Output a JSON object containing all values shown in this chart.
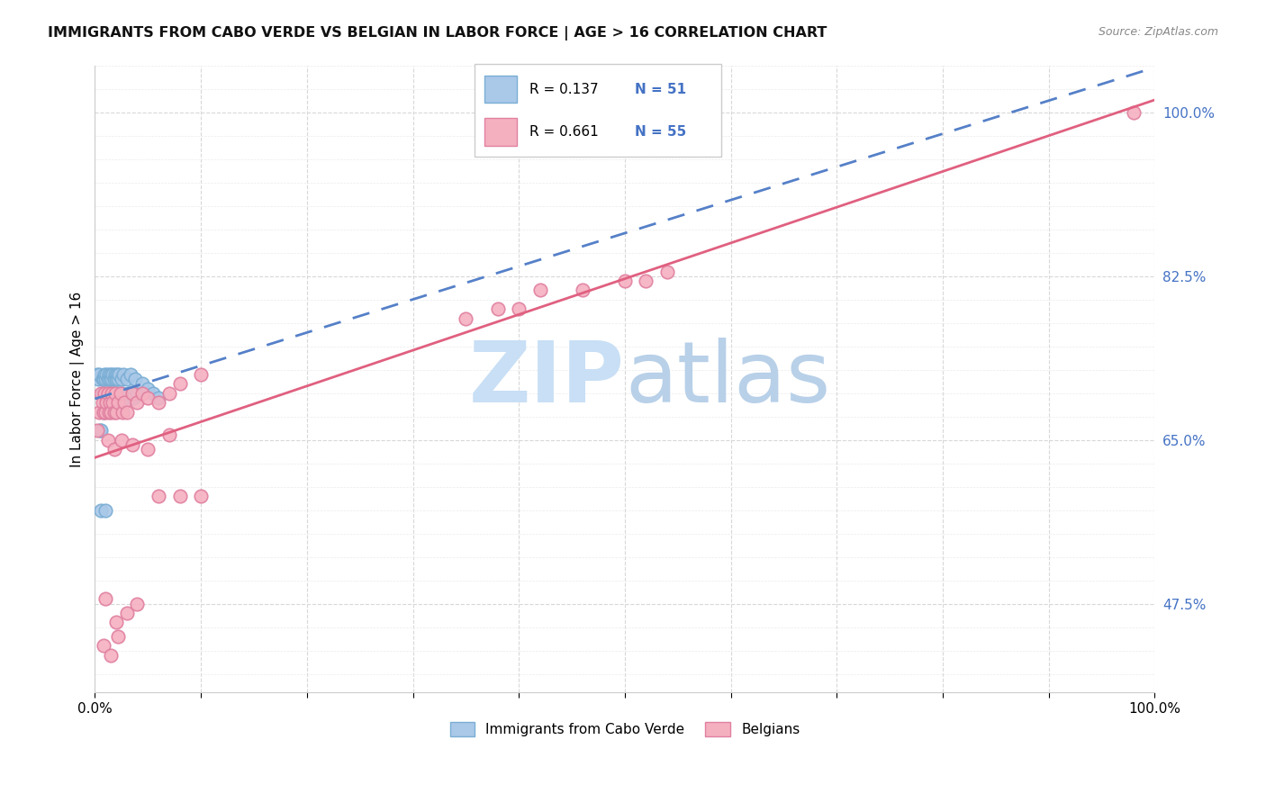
{
  "title": "IMMIGRANTS FROM CABO VERDE VS BELGIAN IN LABOR FORCE | AGE > 16 CORRELATION CHART",
  "source": "Source: ZipAtlas.com",
  "ylabel": "In Labor Force | Age > 16",
  "cabo_verde_color": "#aac8e8",
  "cabo_verde_edge": "#7aaed4",
  "belgians_color": "#f5b0c0",
  "belgians_edge": "#e080a0",
  "line_cv_color": "#5580c8",
  "line_bel_color": "#e06080",
  "watermark_zip_color": "#cce0f5",
  "watermark_atlas_color": "#c0d8f0",
  "R1": "0.137",
  "N1": "51",
  "R2": "0.661",
  "N2": "55",
  "ytick_color": "#4472c4",
  "cabo_verde_x": [
    0.002,
    0.003,
    0.004,
    0.005,
    0.006,
    0.007,
    0.007,
    0.008,
    0.008,
    0.009,
    0.01,
    0.01,
    0.011,
    0.012,
    0.012,
    0.013,
    0.013,
    0.014,
    0.014,
    0.015,
    0.015,
    0.016,
    0.016,
    0.017,
    0.017,
    0.018,
    0.018,
    0.019,
    0.02,
    0.02,
    0.021,
    0.022,
    0.022,
    0.023,
    0.024,
    0.025,
    0.026,
    0.027,
    0.028,
    0.03,
    0.032,
    0.034,
    0.036,
    0.038,
    0.04,
    0.045,
    0.05,
    0.055,
    0.06,
    0.006,
    0.01
  ],
  "cabo_verde_y": [
    0.72,
    0.715,
    0.72,
    0.66,
    0.66,
    0.715,
    0.7,
    0.715,
    0.68,
    0.72,
    0.715,
    0.69,
    0.72,
    0.715,
    0.7,
    0.72,
    0.695,
    0.715,
    0.7,
    0.72,
    0.695,
    0.715,
    0.7,
    0.72,
    0.695,
    0.715,
    0.7,
    0.72,
    0.715,
    0.695,
    0.72,
    0.715,
    0.7,
    0.72,
    0.695,
    0.715,
    0.7,
    0.72,
    0.695,
    0.715,
    0.7,
    0.72,
    0.695,
    0.715,
    0.7,
    0.71,
    0.705,
    0.7,
    0.695,
    0.575,
    0.575
  ],
  "belgians_x": [
    0.002,
    0.004,
    0.006,
    0.007,
    0.008,
    0.009,
    0.01,
    0.011,
    0.012,
    0.013,
    0.014,
    0.015,
    0.016,
    0.017,
    0.018,
    0.019,
    0.02,
    0.022,
    0.024,
    0.026,
    0.028,
    0.03,
    0.035,
    0.04,
    0.045,
    0.05,
    0.06,
    0.07,
    0.08,
    0.1,
    0.012,
    0.018,
    0.025,
    0.035,
    0.05,
    0.07,
    0.01,
    0.02,
    0.03,
    0.04,
    0.06,
    0.08,
    0.1,
    0.35,
    0.38,
    0.4,
    0.42,
    0.46,
    0.5,
    0.52,
    0.54,
    0.98,
    0.008,
    0.015,
    0.022
  ],
  "belgians_y": [
    0.66,
    0.68,
    0.7,
    0.69,
    0.68,
    0.7,
    0.68,
    0.69,
    0.7,
    0.68,
    0.69,
    0.68,
    0.7,
    0.69,
    0.68,
    0.7,
    0.68,
    0.69,
    0.7,
    0.68,
    0.69,
    0.68,
    0.7,
    0.69,
    0.7,
    0.695,
    0.69,
    0.7,
    0.71,
    0.72,
    0.65,
    0.64,
    0.65,
    0.645,
    0.64,
    0.655,
    0.48,
    0.455,
    0.465,
    0.475,
    0.59,
    0.59,
    0.59,
    0.78,
    0.79,
    0.79,
    0.81,
    0.81,
    0.82,
    0.82,
    0.83,
    1.0,
    0.43,
    0.42,
    0.44
  ],
  "ylim": [
    0.38,
    1.05
  ],
  "xlim": [
    0.0,
    1.0
  ],
  "yticks": [
    0.475,
    0.65,
    0.825,
    1.0
  ],
  "ytick_labels": [
    "47.5%",
    "65.0%",
    "82.5%",
    "100.0%"
  ],
  "xticks": [
    0.0,
    0.1,
    0.2,
    0.3,
    0.4,
    0.5,
    0.6,
    0.7,
    0.8,
    0.9,
    1.0
  ],
  "xtick_labels": [
    "0.0%",
    "",
    "",
    "",
    "",
    "",
    "",
    "",
    "",
    "",
    "100.0%"
  ]
}
